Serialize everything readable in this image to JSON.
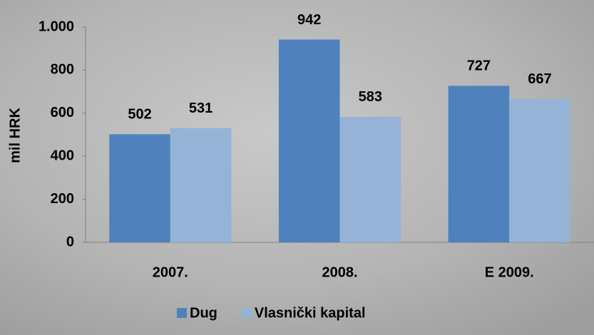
{
  "chart_data": {
    "type": "bar",
    "y_label": "mil HRK",
    "categories": [
      "2007.",
      "2008.",
      "E 2009."
    ],
    "series": [
      {
        "name": "Dug",
        "color": "#4f81bd",
        "values": [
          502,
          942,
          727
        ]
      },
      {
        "name": "Vlasnički kapital",
        "color": "#95b3d7",
        "values": [
          531,
          583,
          667
        ]
      }
    ],
    "ylim": [
      0,
      1000
    ],
    "yticks": [
      0,
      200,
      400,
      600,
      800,
      {
        "value": 1000,
        "label": "1.000"
      }
    ],
    "legend": "bottom"
  }
}
